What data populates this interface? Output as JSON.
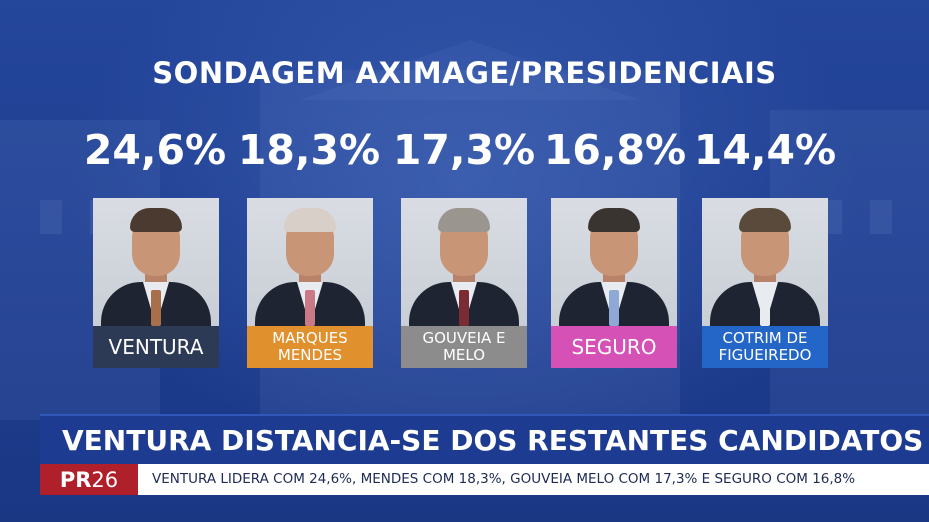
{
  "title": "SONDAGEM AXIMAGE/PRESIDENCIAIS",
  "candidates": [
    {
      "percent": "24,6%",
      "label": "VENTURA",
      "label_color": "#2c3a55",
      "tie_color": "#a86f4d",
      "hair_color": "#4a3a30"
    },
    {
      "percent": "18,3%",
      "label": "MARQUES MENDES",
      "label_color": "#e0902c",
      "tie_color": "#c97a86",
      "hair_color": "#d8d0c8"
    },
    {
      "percent": "17,3%",
      "label": "GOUVEIA E MELO",
      "label_color": "#8c8c8c",
      "tie_color": "#7a2b33",
      "hair_color": "#9a958e"
    },
    {
      "percent": "16,8%",
      "label": "SEGURO",
      "label_color": "#d651b6",
      "tie_color": "#8fa9d6",
      "hair_color": "#3a3430"
    },
    {
      "percent": "14,4%",
      "label": "COTRIM DE FIGUEIREDO",
      "label_color": "#2466c7",
      "tie_color": "#e8ecf1",
      "hair_color": "#5a4a3c"
    }
  ],
  "headline": "VENTURA DISTANCIA-SE DOS RESTANTES CANDIDATOS",
  "ticker": {
    "logo_bold": "PR",
    "logo_thin": "26",
    "text": "VENTURA LIDERA COM 24,6%, MENDES COM 18,3%, GOUVEIA MELO COM 17,3% E SEGURO COM 16,8%"
  }
}
